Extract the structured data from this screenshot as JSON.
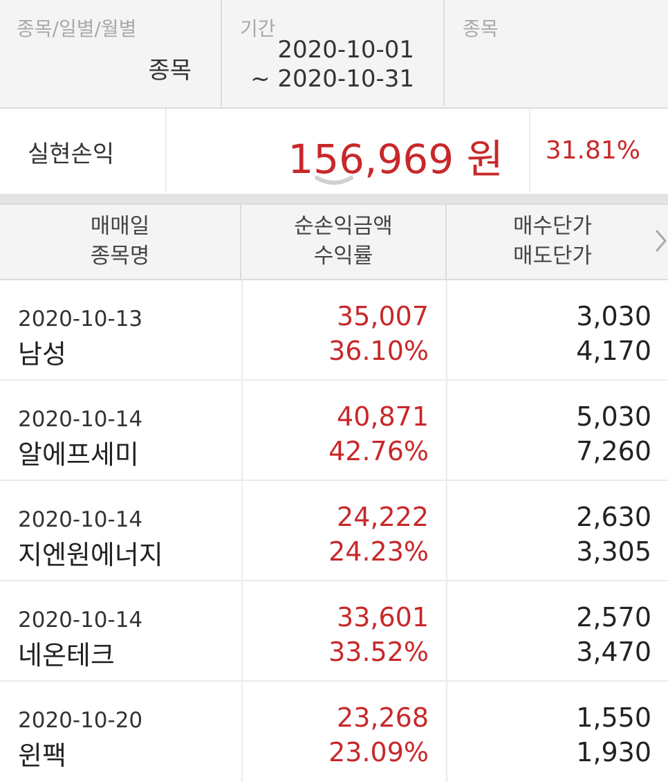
{
  "filter": {
    "type_label": "종목/일별/월별",
    "type_value": "종목",
    "period_label": "기간",
    "period_from": "2020-10-01",
    "period_to": "~ 2020-10-31",
    "stock_label": "종목",
    "stock_value": ""
  },
  "summary": {
    "label": "실현손익",
    "amount": "156,969 원",
    "rate": "31.81%",
    "expand_icon": "chevron-down-icon"
  },
  "table": {
    "headers": {
      "col1_line1": "매매일",
      "col1_line2": "종목명",
      "col2_line1": "순손익금액",
      "col2_line2": "수익률",
      "col3_line1": "매수단가",
      "col3_line2": "매도단가"
    },
    "more_icon": "chevron-right-icon",
    "rows": [
      {
        "date": "2020-10-13",
        "name": "남성",
        "profit": "35,007",
        "rate": "36.10%",
        "buy_price": "3,030",
        "sell_price": "4,170"
      },
      {
        "date": "2020-10-14",
        "name": "알에프세미",
        "profit": "40,871",
        "rate": "42.76%",
        "buy_price": "5,030",
        "sell_price": "7,260"
      },
      {
        "date": "2020-10-14",
        "name": "지엔원에너지",
        "profit": "24,222",
        "rate": "24.23%",
        "buy_price": "2,630",
        "sell_price": "3,305"
      },
      {
        "date": "2020-10-14",
        "name": "네온테크",
        "profit": "33,601",
        "rate": "33.52%",
        "buy_price": "2,570",
        "sell_price": "3,470"
      },
      {
        "date": "2020-10-20",
        "name": "윈팩",
        "profit": "23,268",
        "rate": "23.09%",
        "buy_price": "1,550",
        "sell_price": "1,930"
      }
    ]
  },
  "colors": {
    "profit_red": "#c8282a",
    "header_bg": "#f4f4f4"
  }
}
